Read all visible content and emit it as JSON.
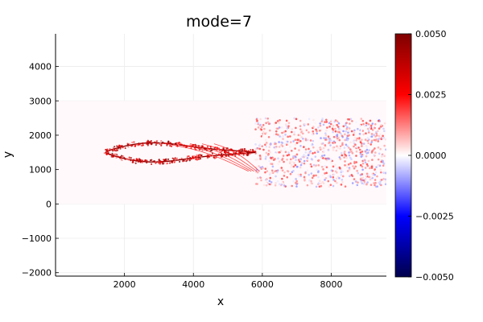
{
  "chart_data": {
    "type": "heatmap",
    "title": "mode=7",
    "xlabel": "x",
    "ylabel": "y",
    "xlim": [
      0,
      9600
    ],
    "ylim": [
      -2100,
      4950
    ],
    "grid": true,
    "legend": "none",
    "x_ticks": [
      {
        "value": 2000,
        "label": "2000"
      },
      {
        "value": 4000,
        "label": "4000"
      },
      {
        "value": 6000,
        "label": "6000"
      },
      {
        "value": 8000,
        "label": "8000"
      }
    ],
    "y_ticks": [
      {
        "value": -2000,
        "label": "−2000"
      },
      {
        "value": -1000,
        "label": "−1000"
      },
      {
        "value": 0,
        "label": "0"
      },
      {
        "value": 1000,
        "label": "1000"
      },
      {
        "value": 2000,
        "label": "2000"
      },
      {
        "value": 3000,
        "label": "3000"
      },
      {
        "value": 4000,
        "label": "4000"
      }
    ],
    "colorbar": {
      "colormap": "seismic",
      "clim": [
        -0.005,
        0.005
      ],
      "ticks": [
        {
          "value": 0.005,
          "label": "0.0050"
        },
        {
          "value": 0.0025,
          "label": "0.0025"
        },
        {
          "value": 0.0,
          "label": "0.0000"
        },
        {
          "value": -0.0025,
          "label": "−0.0025"
        },
        {
          "value": -0.005,
          "label": "−0.0050"
        }
      ]
    },
    "background_field": {
      "x_range": [
        0,
        9600
      ],
      "y_range": [
        0,
        3000
      ],
      "value": 0.0
    },
    "structures": [
      {
        "name": "upper-lobe",
        "x_range": [
          1450,
          5800
        ],
        "center_y": 1500,
        "amplitude": 220,
        "spread": 25
      },
      {
        "name": "lower-lobe",
        "x_range": [
          1450,
          5800
        ],
        "center_y": 1500,
        "amplitude": -220,
        "spread": 25
      },
      {
        "name": "wake-region",
        "x_range": [
          5800,
          9600
        ],
        "y_range": [
          500,
          2500
        ],
        "typical_value": 0.0015
      }
    ]
  },
  "colors": {
    "colormap_anchors": [
      "#00004c",
      "#0000ff",
      "#ffffff",
      "#ff0000",
      "#7f0000"
    ],
    "axis": "#000000",
    "grid": "#ececec",
    "background_field": "#fff9fb"
  }
}
